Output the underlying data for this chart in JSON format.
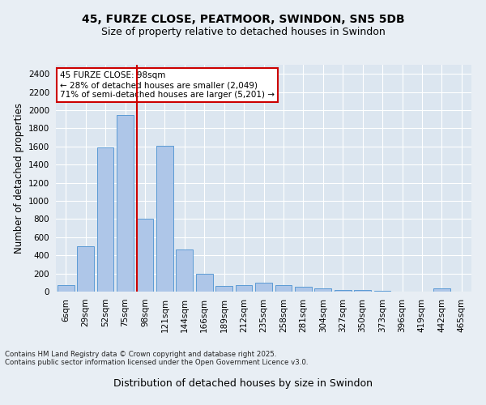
{
  "title_line1": "45, FURZE CLOSE, PEATMOOR, SWINDON, SN5 5DB",
  "title_line2": "Size of property relative to detached houses in Swindon",
  "xlabel": "Distribution of detached houses by size in Swindon",
  "ylabel": "Number of detached properties",
  "footnote": "Contains HM Land Registry data © Crown copyright and database right 2025.\nContains public sector information licensed under the Open Government Licence v3.0.",
  "categories": [
    "6sqm",
    "29sqm",
    "52sqm",
    "75sqm",
    "98sqm",
    "121sqm",
    "144sqm",
    "166sqm",
    "189sqm",
    "212sqm",
    "235sqm",
    "258sqm",
    "281sqm",
    "304sqm",
    "327sqm",
    "350sqm",
    "373sqm",
    "396sqm",
    "419sqm",
    "442sqm",
    "465sqm"
  ],
  "values": [
    75,
    500,
    1590,
    1950,
    800,
    1610,
    460,
    200,
    65,
    75,
    100,
    75,
    55,
    40,
    20,
    15,
    5,
    0,
    0,
    40,
    0
  ],
  "bar_color": "#aec6e8",
  "bar_edge_color": "#5b9bd5",
  "vline_color": "#cc0000",
  "vline_pos": 3.575,
  "annotation_text": "45 FURZE CLOSE: 98sqm\n← 28% of detached houses are smaller (2,049)\n71% of semi-detached houses are larger (5,201) →",
  "annotation_box_color": "#cc0000",
  "ylim": [
    0,
    2500
  ],
  "yticks": [
    0,
    200,
    400,
    600,
    800,
    1000,
    1200,
    1400,
    1600,
    1800,
    2000,
    2200,
    2400
  ],
  "bg_color": "#e8eef4",
  "plot_bg_color": "#dce6f0",
  "grid_color": "#ffffff",
  "title_fontsize": 10,
  "subtitle_fontsize": 9,
  "axis_label_fontsize": 8.5,
  "tick_fontsize": 7.5,
  "annotation_fontsize": 7.5,
  "footnote_fontsize": 6.2
}
